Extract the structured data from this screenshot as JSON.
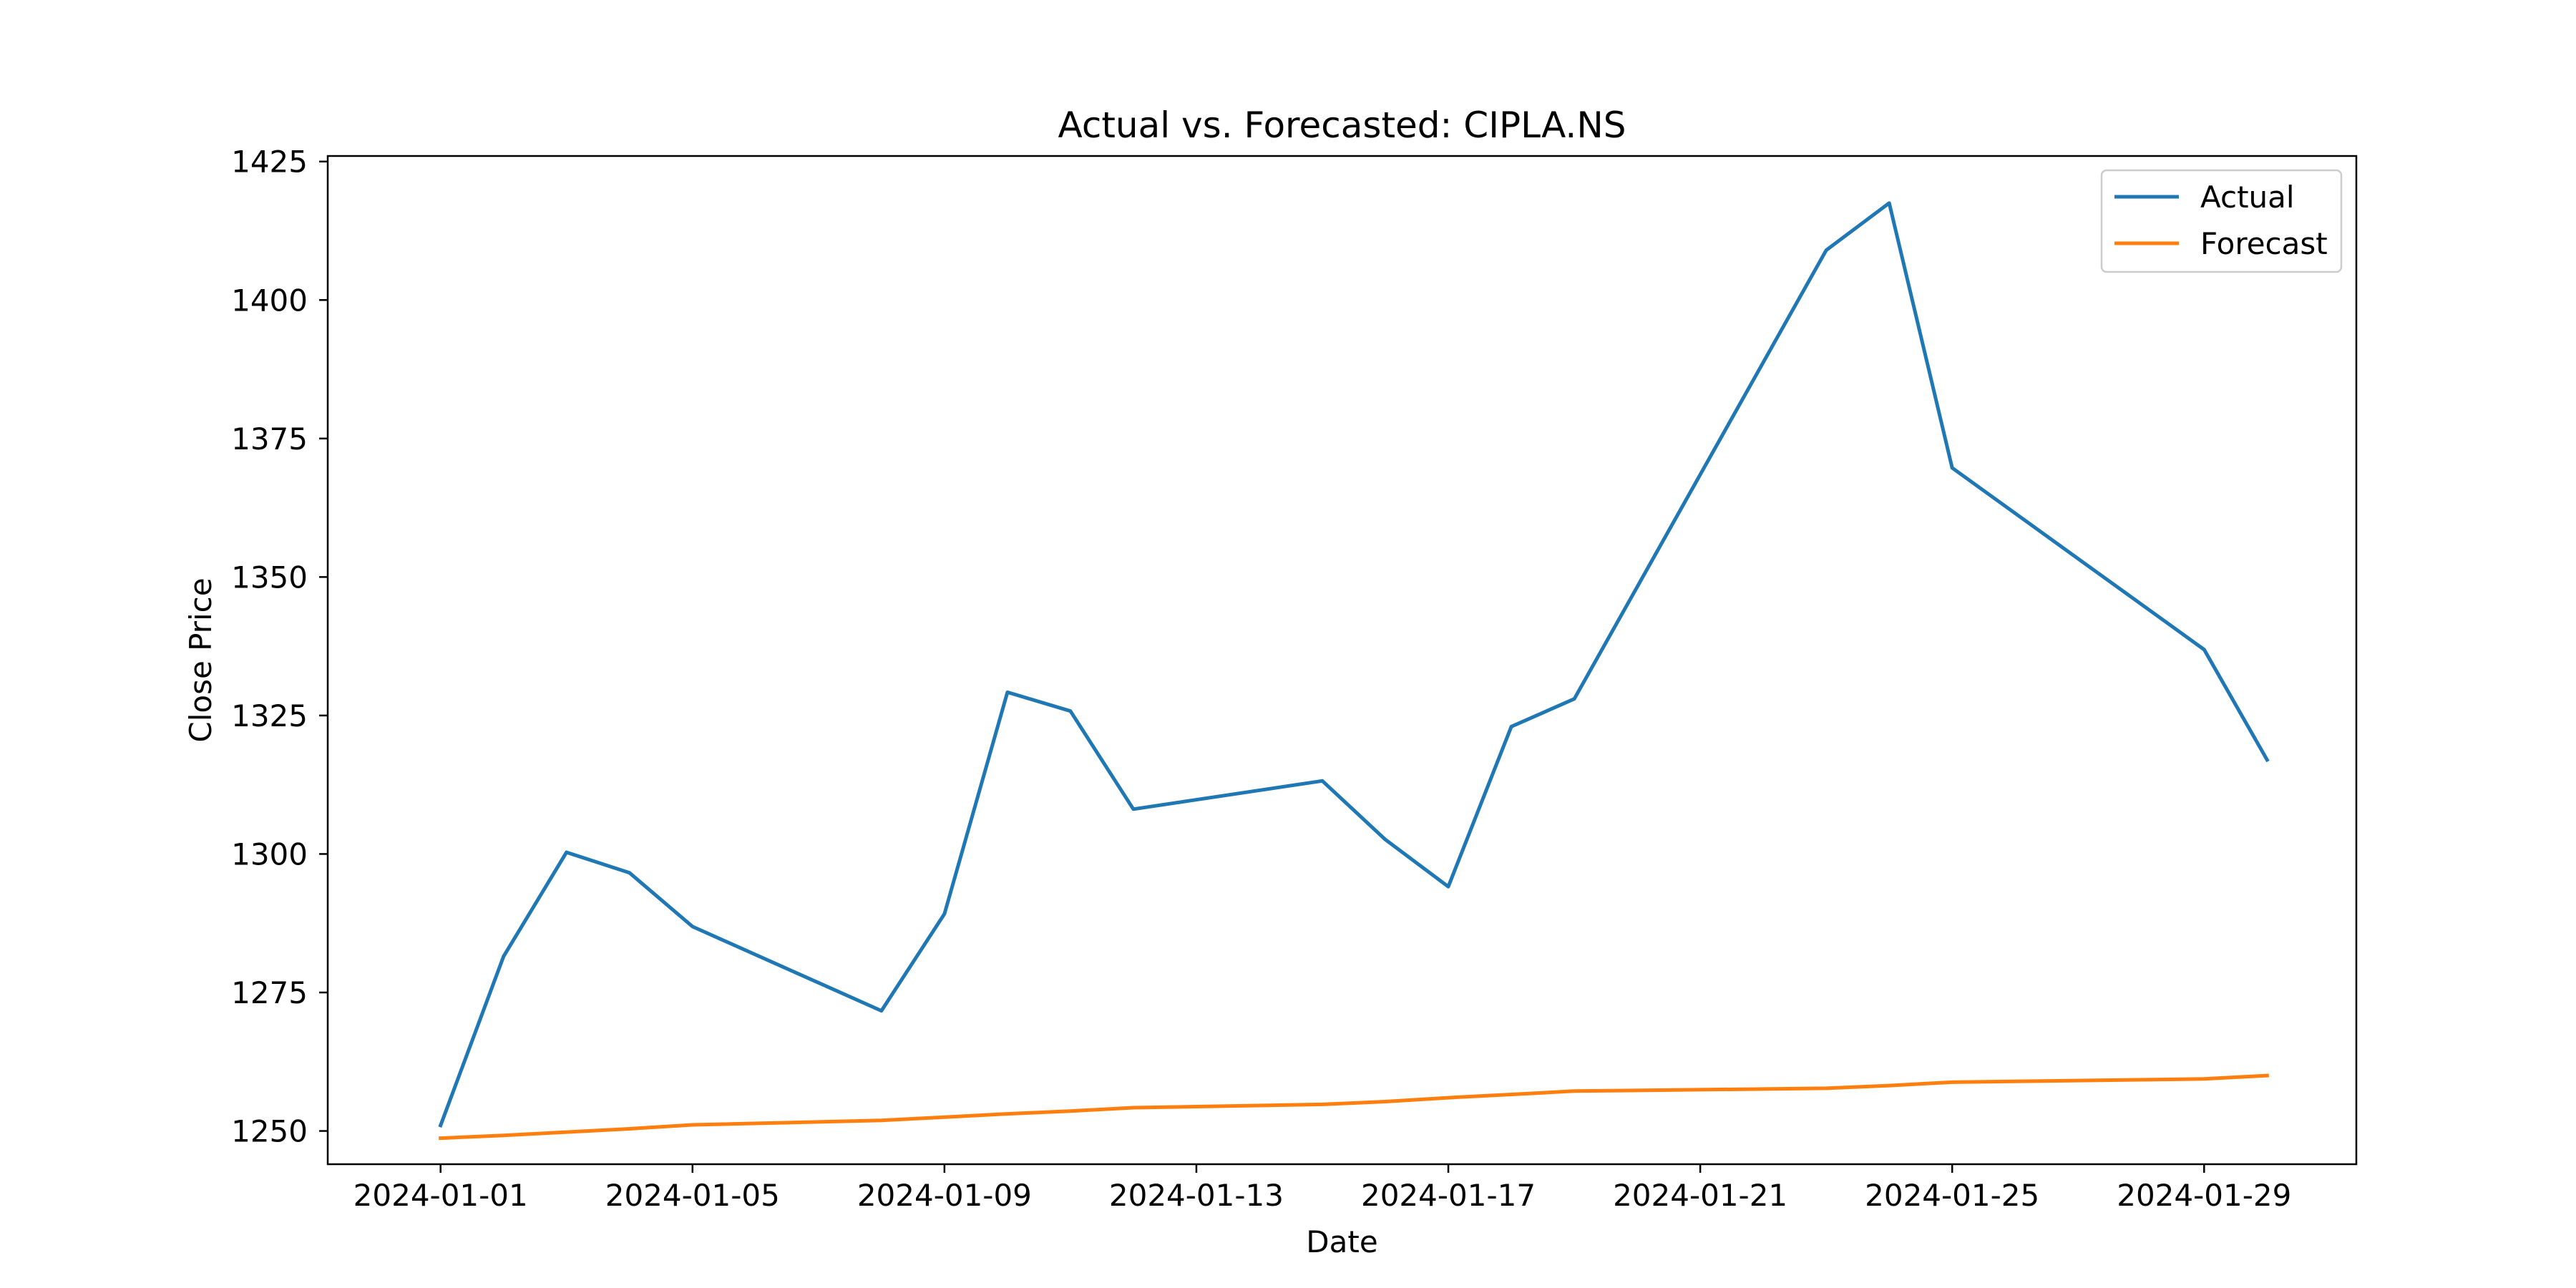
{
  "chart_data": {
    "type": "line",
    "title": "Actual vs. Forecasted: CIPLA.NS",
    "xlabel": "Date",
    "ylabel": "Close Price",
    "xlim": [
      "2023-12-30T05:00",
      "2024-01-31T10:00"
    ],
    "ylim": [
      1244,
      1426
    ],
    "x_ticks": [
      "2024-01-01",
      "2024-01-05",
      "2024-01-09",
      "2024-01-13",
      "2024-01-17",
      "2024-01-21",
      "2024-01-25",
      "2024-01-29"
    ],
    "y_ticks": [
      1250,
      1275,
      1300,
      1325,
      1350,
      1375,
      1400,
      1425
    ],
    "grid": false,
    "legend_position": "top-right",
    "colors": {
      "Actual": "#1f77b4",
      "Forecast": "#ff7f0e"
    },
    "series": [
      {
        "name": "Actual",
        "x": [
          "2024-01-01",
          "2024-01-02",
          "2024-01-03",
          "2024-01-04",
          "2024-01-05",
          "2024-01-08",
          "2024-01-09",
          "2024-01-10",
          "2024-01-11",
          "2024-01-12",
          "2024-01-15",
          "2024-01-16",
          "2024-01-17",
          "2024-01-18",
          "2024-01-19",
          "2024-01-23",
          "2024-01-24",
          "2024-01-25",
          "2024-01-29",
          "2024-01-30"
        ],
        "values": [
          1251,
          1281.5,
          1300.3,
          1296.6,
          1286.9,
          1271.7,
          1289.2,
          1329.2,
          1325.8,
          1308.1,
          1313.2,
          1302.6,
          1294.1,
          1323.0,
          1328.0,
          1409.0,
          1417.5,
          1369.7,
          1336.9,
          1317.0
        ]
      },
      {
        "name": "Forecast",
        "x": [
          "2024-01-01",
          "2024-01-02",
          "2024-01-03",
          "2024-01-04",
          "2024-01-05",
          "2024-01-08",
          "2024-01-09",
          "2024-01-10",
          "2024-01-11",
          "2024-01-12",
          "2024-01-15",
          "2024-01-16",
          "2024-01-17",
          "2024-01-18",
          "2024-01-19",
          "2024-01-23",
          "2024-01-24",
          "2024-01-25",
          "2024-01-29",
          "2024-01-30"
        ],
        "values": [
          1248.7,
          1249.2,
          1249.8,
          1250.4,
          1251.1,
          1251.9,
          1252.5,
          1253.1,
          1253.6,
          1254.2,
          1254.8,
          1255.3,
          1256.0,
          1256.6,
          1257.2,
          1257.7,
          1258.2,
          1258.8,
          1259.4,
          1260.0
        ]
      }
    ]
  }
}
